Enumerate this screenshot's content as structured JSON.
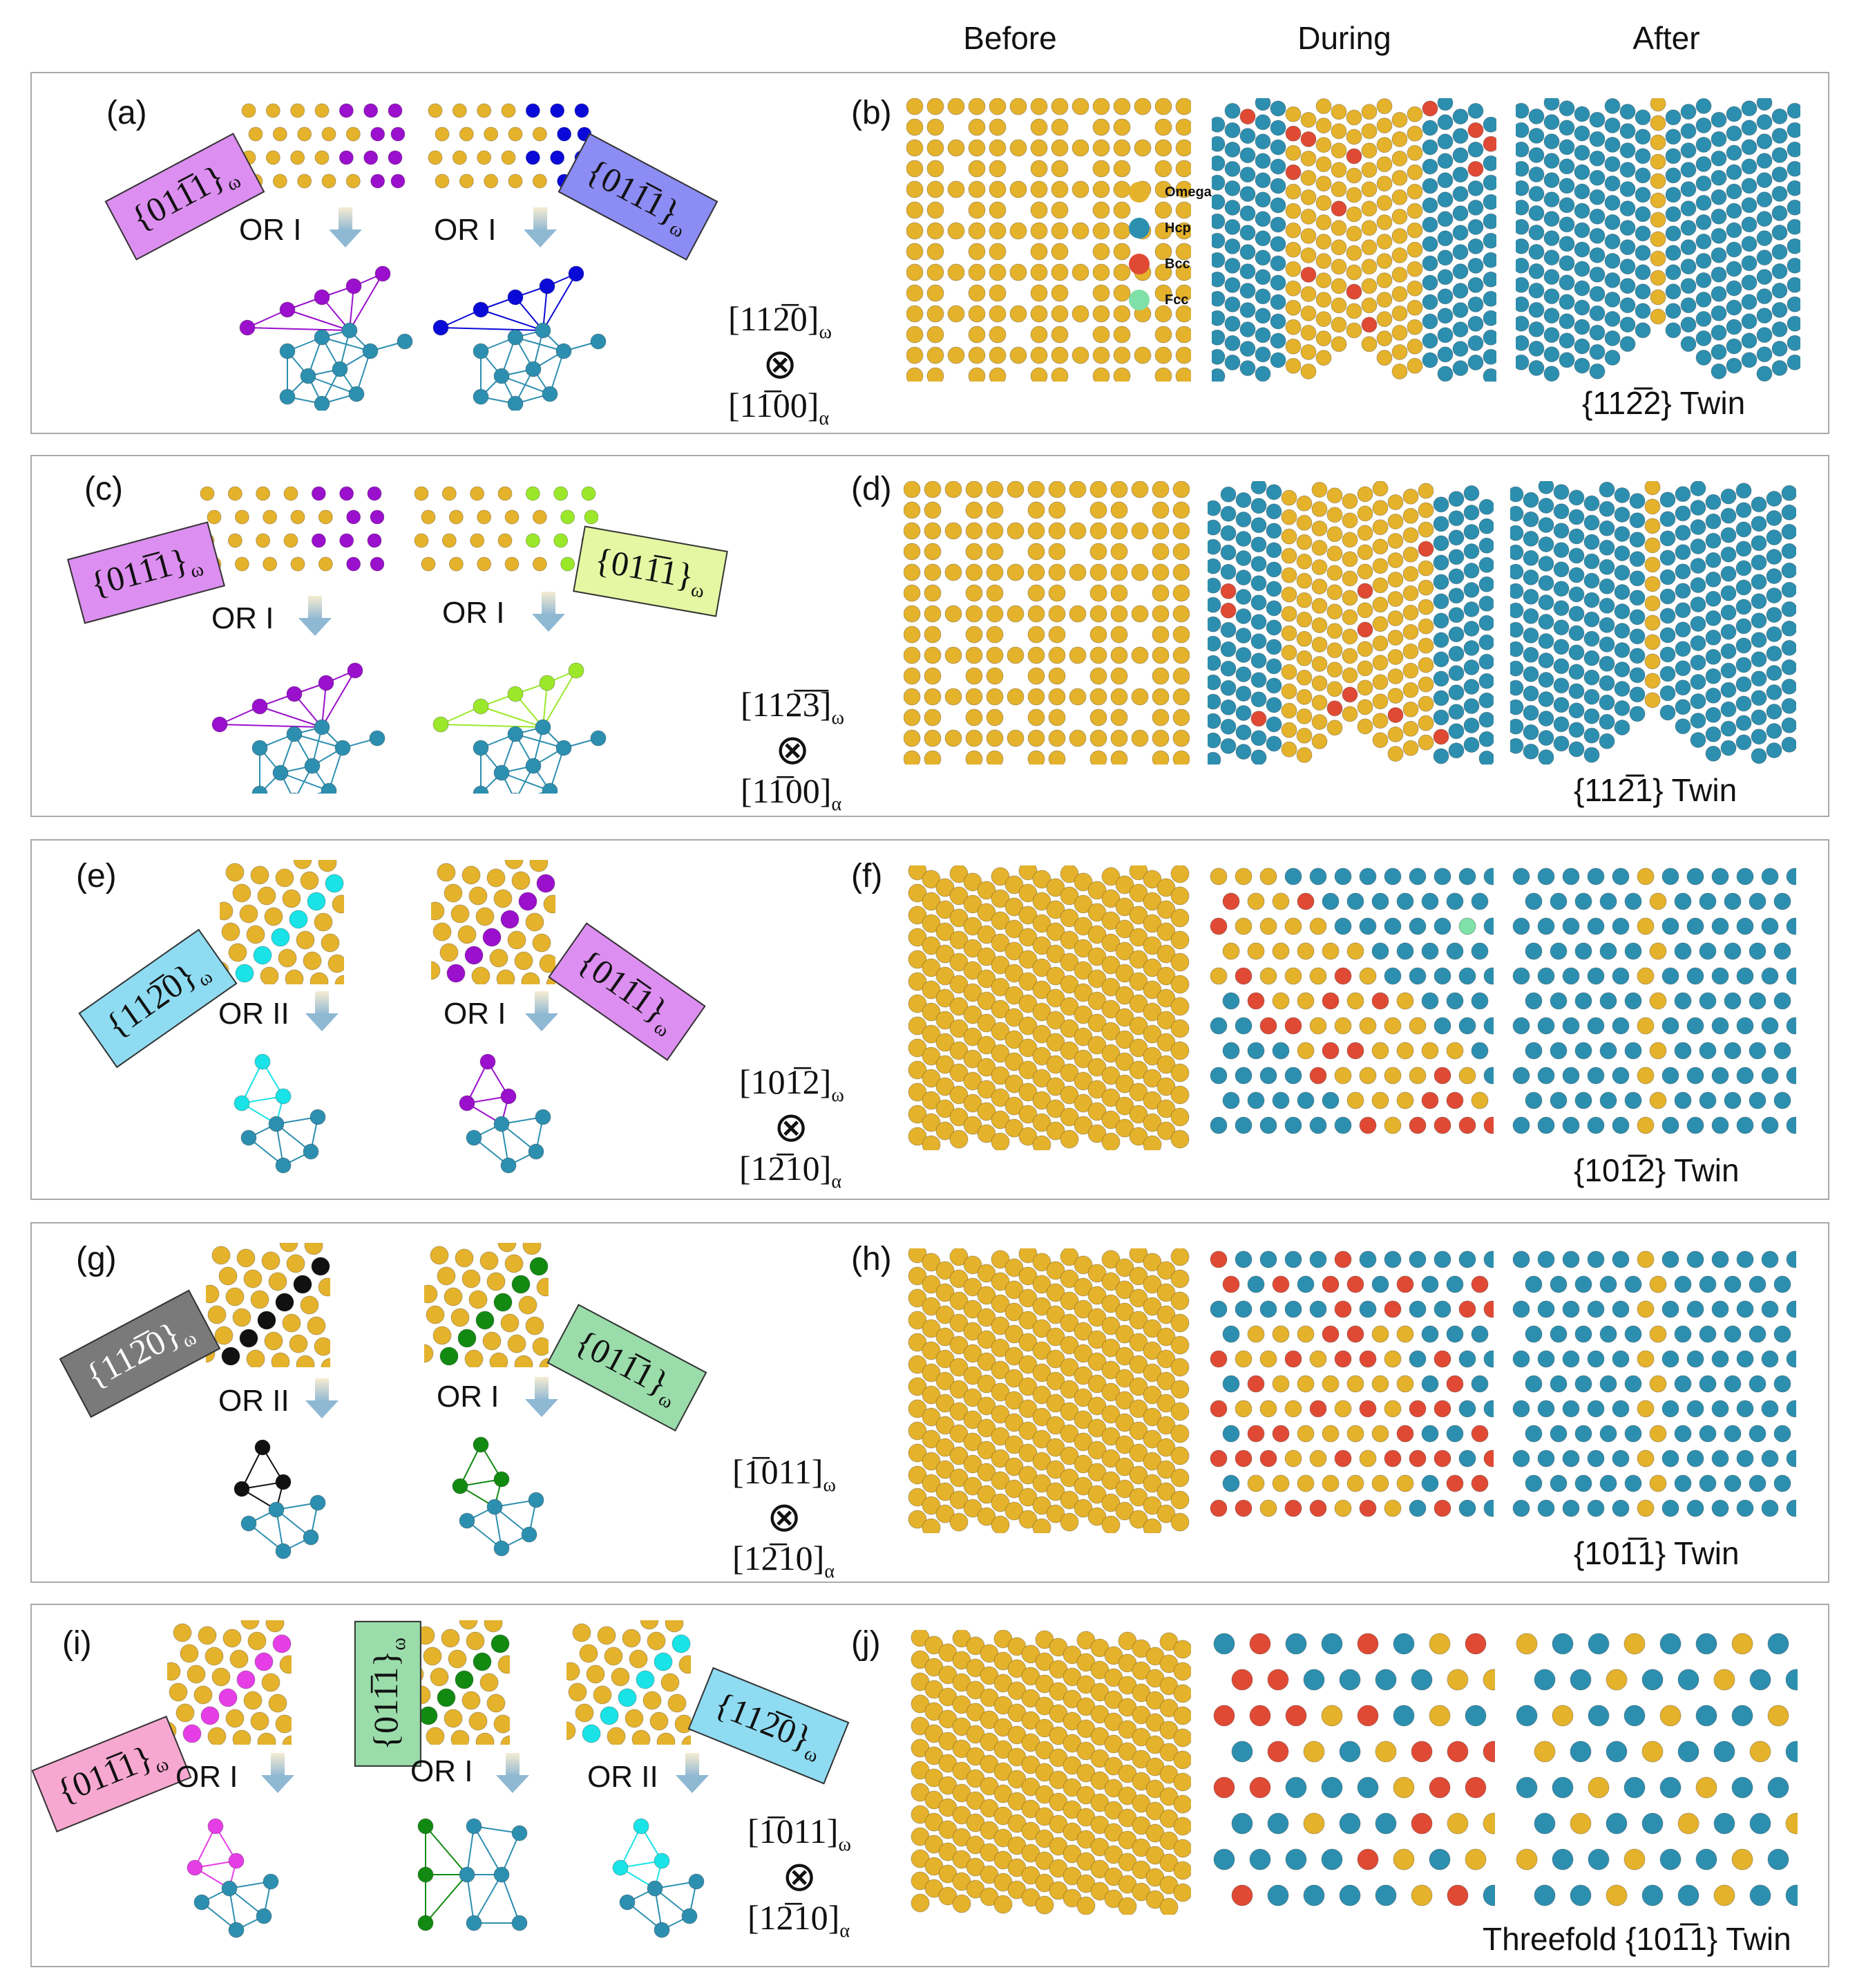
{
  "headers": {
    "before": "Before",
    "during": "During",
    "after": "After"
  },
  "legend": [
    {
      "label": "Omega",
      "color": "#e5b22c"
    },
    {
      "label": "Hcp",
      "color": "#2d8fb0"
    },
    {
      "label": "Bcc",
      "color": "#e04a35"
    },
    {
      "label": "Fcc",
      "color": "#7fe0a8"
    }
  ],
  "colors": {
    "omega": "#e5b22c",
    "hcp": "#2d8fb0",
    "bcc": "#e04a35",
    "fcc": "#7fe0a8",
    "purple": "#9a10cc",
    "blue": "#0a0ad8",
    "lime": "#9be82a",
    "cyan": "#19e3e6",
    "black": "#111111",
    "green": "#128a12",
    "magenta": "#e63ee6"
  },
  "panels": [
    {
      "left": "(a)",
      "right": "(b)",
      "twin": "{112̅2} Twin",
      "dir_top": "[112̅0]",
      "dir_top_sub": "ω",
      "dir_bot": "[11̅00]",
      "dir_bot_sub": "α",
      "otimes": "⊗",
      "variants": [
        {
          "plane": "{011̅1}",
          "sub": "ω",
          "or": "OR I",
          "color": "purple"
        },
        {
          "plane": "{011̅1}",
          "sub": "ω",
          "or": "OR I",
          "color": "blue"
        }
      ]
    },
    {
      "left": "(c)",
      "right": "(d)",
      "twin": "{112̅1} Twin",
      "dir_top": "[112̅3̅]",
      "dir_top_sub": "ω",
      "dir_bot": "[11̅00]",
      "dir_bot_sub": "α",
      "otimes": "⊗",
      "variants": [
        {
          "plane": "{011̅1}",
          "sub": "ω",
          "or": "OR I",
          "color": "purple"
        },
        {
          "plane": "{011̅1}",
          "sub": "ω",
          "or": "OR I",
          "color": "lime"
        }
      ]
    },
    {
      "left": "(e)",
      "right": "(f)",
      "twin": "{101̅2} Twin",
      "dir_top": "[101̅2]",
      "dir_top_sub": "ω",
      "dir_bot": "[12̅10]",
      "dir_bot_sub": "α",
      "otimes": "⊗",
      "variants": [
        {
          "plane": "{112̅0}",
          "sub": "ω",
          "or": "OR II",
          "color": "cyan"
        },
        {
          "plane": "{011̅1}",
          "sub": "ω",
          "or": "OR I",
          "color": "purple"
        }
      ]
    },
    {
      "left": "(g)",
      "right": "(h)",
      "twin": "{101̅1} Twin",
      "dir_top": "[1̅011]",
      "dir_top_sub": "ω",
      "dir_bot": "[12̅10]",
      "dir_bot_sub": "α",
      "otimes": "⊗",
      "variants": [
        {
          "plane": "{112̅0}",
          "sub": "ω",
          "or": "OR II",
          "color": "black"
        },
        {
          "plane": "{011̅1}",
          "sub": "ω",
          "or": "OR I",
          "color": "green"
        }
      ]
    },
    {
      "left": "(i)",
      "right": "(j)",
      "twin": "Threefold {101̅1} Twin",
      "dir_top": "[1̅011]",
      "dir_top_sub": "ω",
      "dir_bot": "[12̅10]",
      "dir_bot_sub": "α",
      "otimes": "⊗",
      "variants": [
        {
          "plane": "{011̅1}",
          "sub": "ω",
          "or": "OR I",
          "color": "magenta"
        },
        {
          "plane": "{011̅1}",
          "sub": "ω",
          "or": "OR I",
          "color": "green"
        },
        {
          "plane": "{112̅0}",
          "sub": "ω",
          "or": "OR II",
          "color": "cyan"
        }
      ]
    }
  ]
}
